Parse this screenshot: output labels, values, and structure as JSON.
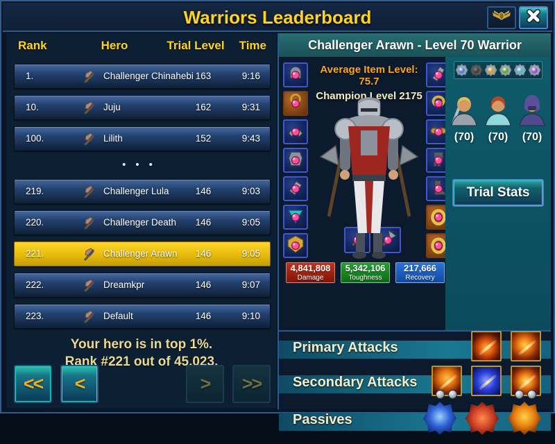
{
  "window": {
    "title": "Warriors Leaderboard"
  },
  "leaderboard": {
    "headers": {
      "rank": "Rank",
      "hero": "Hero",
      "trial_level": "Trial Level",
      "time": "Time"
    },
    "separator": "•••",
    "rows": [
      {
        "rank": "1.",
        "hero": "Challenger Chinahebi",
        "trial_level": "163",
        "time": "9:16",
        "highlighted": false,
        "gap_before": false
      },
      {
        "rank": "10.",
        "hero": "Juju",
        "trial_level": "162",
        "time": "9:31",
        "highlighted": false,
        "gap_before": false
      },
      {
        "rank": "100.",
        "hero": "Lilith",
        "trial_level": "152",
        "time": "9:43",
        "highlighted": false,
        "gap_before": false
      },
      {
        "rank": "219.",
        "hero": "Challenger Lula",
        "trial_level": "146",
        "time": "9:03",
        "highlighted": false,
        "gap_before": true
      },
      {
        "rank": "220.",
        "hero": "Challenger Death",
        "trial_level": "146",
        "time": "9:05",
        "highlighted": false,
        "gap_before": false
      },
      {
        "rank": "221.",
        "hero": "Challenger Arawn",
        "trial_level": "146",
        "time": "9:05",
        "highlighted": true,
        "gap_before": false
      },
      {
        "rank": "222.",
        "hero": "Dreamkpr",
        "trial_level": "146",
        "time": "9:07",
        "highlighted": false,
        "gap_before": false
      },
      {
        "rank": "223.",
        "hero": "Default",
        "trial_level": "146",
        "time": "9:10",
        "highlighted": false,
        "gap_before": false
      }
    ],
    "summary": [
      "Your hero is in top 1%.",
      "Rank #221 out of 45,023."
    ],
    "pagination": [
      {
        "label": "<<",
        "name": "first-page-button",
        "enabled": true
      },
      {
        "label": "<",
        "name": "prev-page-button",
        "enabled": true
      },
      {
        "label": ">",
        "name": "next-page-button",
        "enabled": false
      },
      {
        "label": ">>",
        "name": "last-page-button",
        "enabled": false
      }
    ]
  },
  "hero_panel": {
    "title": "Challenger Arawn - Level 70 Warrior",
    "average_item_level_label": "Average Item Level: 75.7",
    "champion_level_label": "Champion Level 2175",
    "equipment_left": [
      {
        "slot": "helmet",
        "frame": "blue"
      },
      {
        "slot": "amulet",
        "frame": "orange"
      },
      {
        "slot": "shoulders",
        "frame": "blue"
      },
      {
        "slot": "chest",
        "frame": "blue"
      },
      {
        "slot": "bracers",
        "frame": "blue"
      },
      {
        "slot": "cloak",
        "frame": "blue"
      },
      {
        "slot": "insignia",
        "frame": "blue"
      }
    ],
    "equipment_right": [
      {
        "slot": "offhand",
        "frame": "blue"
      },
      {
        "slot": "armband",
        "frame": "blue"
      },
      {
        "slot": "belt",
        "frame": "blue"
      },
      {
        "slot": "pants",
        "frame": "blue"
      },
      {
        "slot": "boots",
        "frame": "blue"
      },
      {
        "slot": "ring",
        "frame": "orange"
      },
      {
        "slot": "ring",
        "frame": "orange"
      }
    ],
    "weapon_slots": [
      {
        "slot": "axe",
        "frame": "blue"
      },
      {
        "slot": "axe",
        "frame": "blue"
      }
    ],
    "stats": [
      {
        "value": "4,841,808",
        "label": "Damage",
        "color_top": "#c23319",
        "color_bottom": "#7e150a"
      },
      {
        "value": "5,342,106",
        "label": "Toughness",
        "color_top": "#24a032",
        "color_bottom": "#0d6a18"
      },
      {
        "value": "217,666",
        "label": "Recovery",
        "color_top": "#2a72dd",
        "color_bottom": "#124a9e"
      }
    ],
    "medals": [
      {
        "color": "#4f82d8",
        "dim": false
      },
      {
        "color": "#6b7680",
        "dim": true
      },
      {
        "color": "#e09a2a",
        "dim": false
      },
      {
        "color": "#63a832",
        "dim": false
      },
      {
        "color": "#46bcd8",
        "dim": false
      },
      {
        "color": "#a050d8",
        "dim": false
      }
    ],
    "companions": [
      {
        "type": "barbarian",
        "level": "(70)",
        "skin": "#d79a62",
        "hair": "#e0c05a",
        "outfit": "#9aa3ad"
      },
      {
        "type": "enchantress",
        "level": "(70)",
        "skin": "#d79a62",
        "hair": "#b2492a",
        "outfit": "#8fd8dc"
      },
      {
        "type": "scoundrel",
        "level": "(70)",
        "skin": "#c9a078",
        "hair": "#5a4f9a",
        "outfit": "#4e4a8c"
      }
    ],
    "trial_stats_label": "Trial Stats",
    "skill_sections": [
      {
        "label": "Primary Attacks",
        "skills": [
          {
            "style": "fire-slash",
            "orbs": 0
          },
          {
            "style": "fire-sweep",
            "orbs": 0
          }
        ]
      },
      {
        "label": "Secondary Attacks",
        "skills": [
          {
            "style": "fire-fist",
            "orbs": 2
          },
          {
            "style": "blue-whirl",
            "orbs": 0
          },
          {
            "style": "fire-beam",
            "orbs": 2
          }
        ]
      },
      {
        "label": "Passives",
        "skills": [
          {
            "style": "passive-blue",
            "orbs": 0
          },
          {
            "style": "passive-red",
            "orbs": 0
          },
          {
            "style": "passive-orange",
            "orbs": 0
          }
        ]
      }
    ]
  }
}
